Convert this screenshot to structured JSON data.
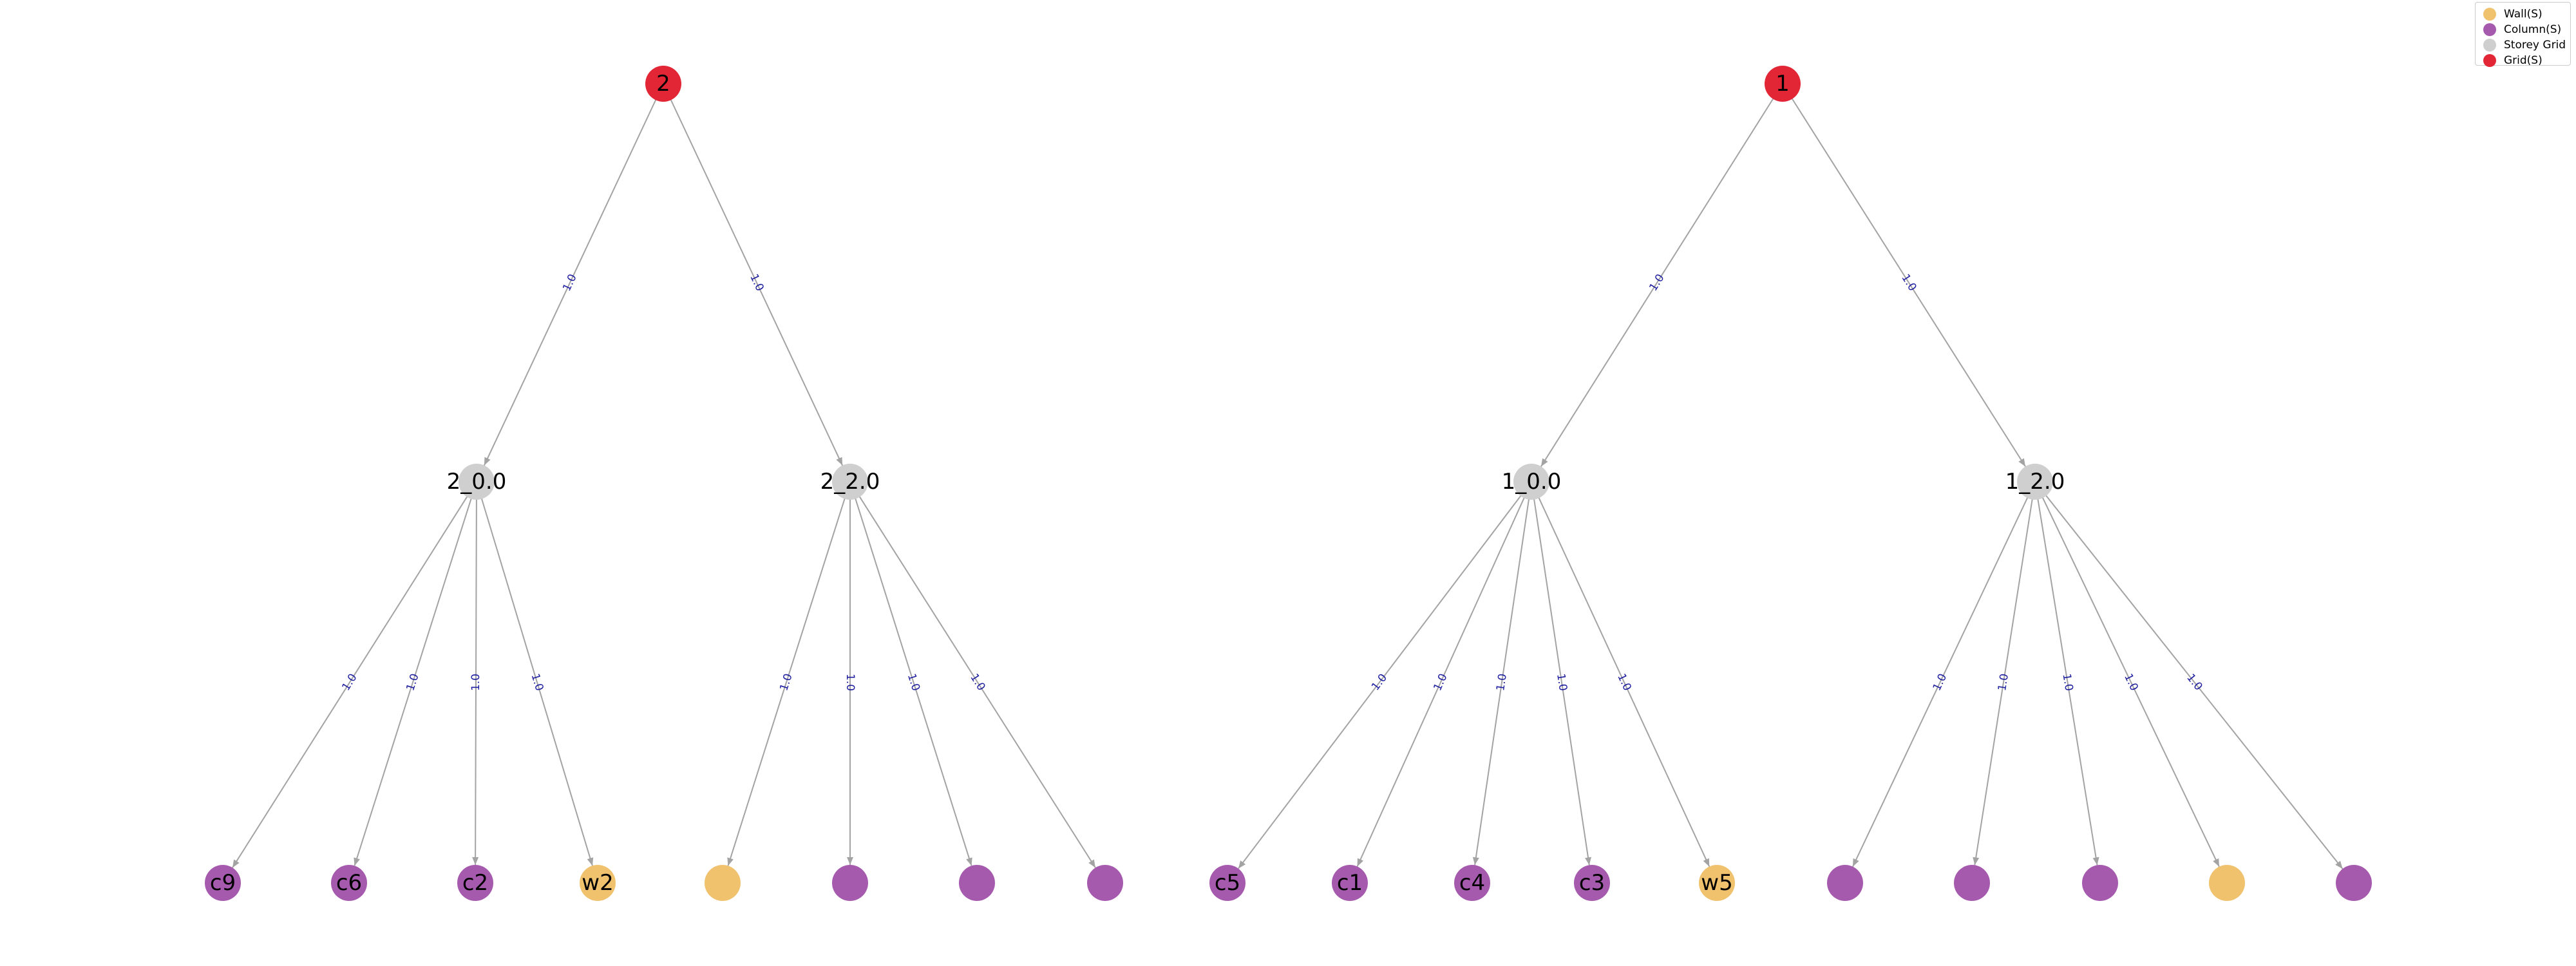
{
  "colors": {
    "grid": "#e32636",
    "storey_grid": "#cfcfcf",
    "column": "#a55aae",
    "wall": "#f0c26e",
    "edge": "#a3a3a3",
    "edge_label": "#1f1fa0"
  },
  "legend": [
    {
      "label": "Wall(S)",
      "type": "wall"
    },
    {
      "label": "Column(S)",
      "type": "column"
    },
    {
      "label": "Storey Grid",
      "type": "storey_grid"
    },
    {
      "label": "Grid(S)",
      "type": "grid"
    }
  ],
  "nodes": [
    {
      "id": "g2",
      "label": "2",
      "type": "grid"
    },
    {
      "id": "g1",
      "label": "1",
      "type": "grid"
    },
    {
      "id": "s2_0",
      "label": "2_0.0",
      "type": "storey_grid"
    },
    {
      "id": "s2_2",
      "label": "2_2.0",
      "type": "storey_grid"
    },
    {
      "id": "s1_0",
      "label": "1_0.0",
      "type": "storey_grid"
    },
    {
      "id": "s1_2",
      "label": "1_2.0",
      "type": "storey_grid"
    },
    {
      "id": "c9",
      "label": "c9",
      "type": "column"
    },
    {
      "id": "c6",
      "label": "c6",
      "type": "column"
    },
    {
      "id": "c2",
      "label": "c2",
      "type": "column"
    },
    {
      "id": "w2",
      "label": "w2",
      "type": "wall"
    },
    {
      "id": "n5",
      "label": "",
      "type": "wall"
    },
    {
      "id": "n6",
      "label": "",
      "type": "column"
    },
    {
      "id": "n7",
      "label": "",
      "type": "column"
    },
    {
      "id": "n8",
      "label": "",
      "type": "column"
    },
    {
      "id": "c5",
      "label": "c5",
      "type": "column"
    },
    {
      "id": "c1",
      "label": "c1",
      "type": "column"
    },
    {
      "id": "c4",
      "label": "c4",
      "type": "column"
    },
    {
      "id": "c3",
      "label": "c3",
      "type": "column"
    },
    {
      "id": "w5",
      "label": "w5",
      "type": "wall"
    },
    {
      "id": "n14",
      "label": "",
      "type": "column"
    },
    {
      "id": "n15",
      "label": "",
      "type": "column"
    },
    {
      "id": "n16",
      "label": "",
      "type": "column"
    },
    {
      "id": "n17",
      "label": "",
      "type": "wall"
    },
    {
      "id": "n18",
      "label": "",
      "type": "column"
    }
  ],
  "edges": [
    {
      "from": "g2",
      "to": "s2_0",
      "label": "1.0"
    },
    {
      "from": "g2",
      "to": "s2_2",
      "label": "1.0"
    },
    {
      "from": "g1",
      "to": "s1_0",
      "label": "1.0"
    },
    {
      "from": "g1",
      "to": "s1_2",
      "label": "1.0"
    },
    {
      "from": "s2_0",
      "to": "c9",
      "label": "1.0"
    },
    {
      "from": "s2_0",
      "to": "c6",
      "label": "1.0"
    },
    {
      "from": "s2_0",
      "to": "c2",
      "label": "1.0"
    },
    {
      "from": "s2_0",
      "to": "w2",
      "label": "1.0"
    },
    {
      "from": "s2_2",
      "to": "n5",
      "label": "1.0"
    },
    {
      "from": "s2_2",
      "to": "n6",
      "label": "1.0"
    },
    {
      "from": "s2_2",
      "to": "n7",
      "label": "1.0"
    },
    {
      "from": "s2_2",
      "to": "n8",
      "label": "1.0"
    },
    {
      "from": "s1_0",
      "to": "c5",
      "label": "1.0"
    },
    {
      "from": "s1_0",
      "to": "c1",
      "label": "1.0"
    },
    {
      "from": "s1_0",
      "to": "c4",
      "label": "1.0"
    },
    {
      "from": "s1_0",
      "to": "c3",
      "label": "1.0"
    },
    {
      "from": "s1_0",
      "to": "w5",
      "label": "1.0"
    },
    {
      "from": "s1_2",
      "to": "n14",
      "label": "1.0"
    },
    {
      "from": "s1_2",
      "to": "n15",
      "label": "1.0"
    },
    {
      "from": "s1_2",
      "to": "n16",
      "label": "1.0"
    },
    {
      "from": "s1_2",
      "to": "n17",
      "label": "1.0"
    },
    {
      "from": "s1_2",
      "to": "n18",
      "label": "1.0"
    }
  ]
}
